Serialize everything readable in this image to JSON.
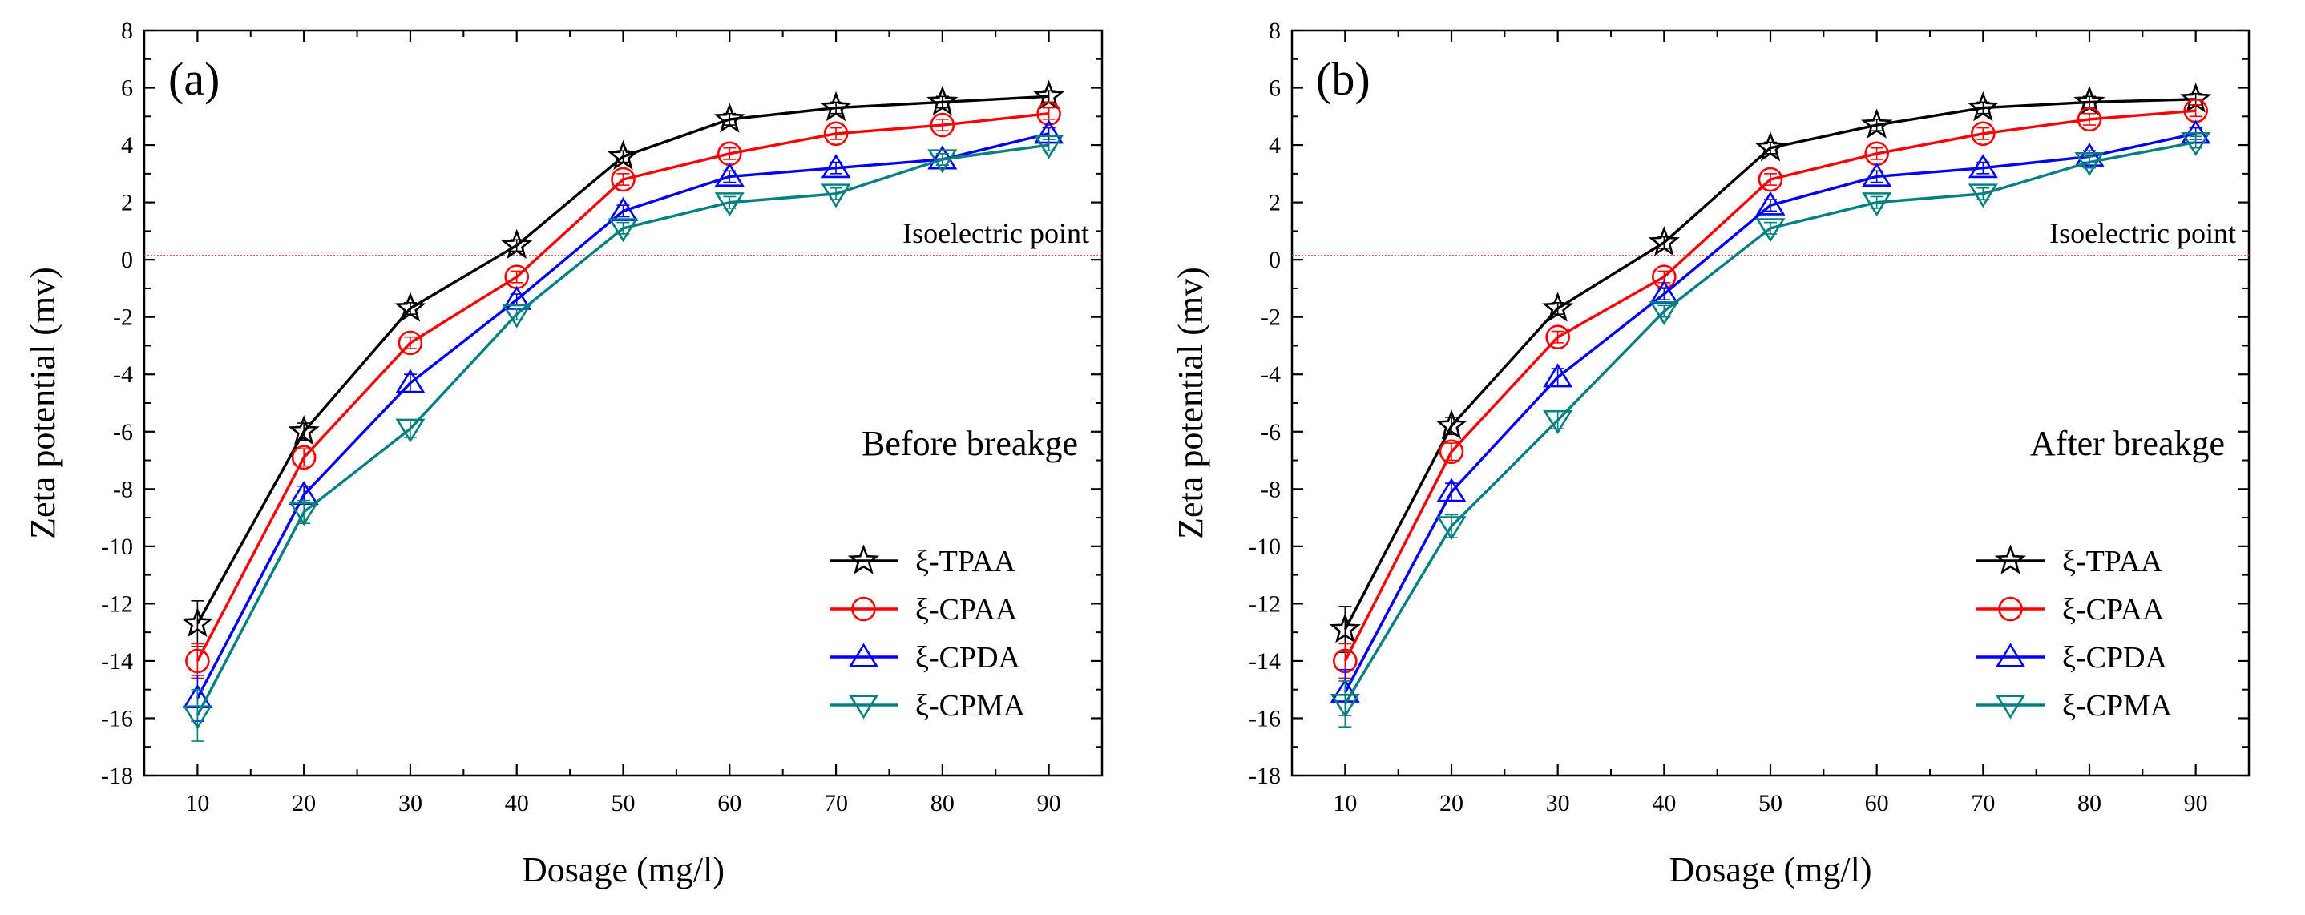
{
  "chart_data": [
    {
      "type": "line",
      "panel_label": "(a)",
      "annotation": "Before breakge",
      "reference_label": "Isoelectric point",
      "reference_y": 0.15,
      "xlabel": "Dosage (mg/l)",
      "ylabel": "Zeta potential (mv)",
      "x": [
        10,
        20,
        30,
        40,
        50,
        60,
        70,
        80,
        90
      ],
      "xlim": [
        5,
        95
      ],
      "ylim": [
        -18,
        8
      ],
      "xticks": [
        10,
        20,
        30,
        40,
        50,
        60,
        70,
        80,
        90
      ],
      "yticks": [
        -18,
        -16,
        -14,
        -12,
        -10,
        -8,
        -6,
        -4,
        -2,
        0,
        2,
        4,
        6,
        8
      ],
      "legend_position": "lower-right",
      "series": [
        {
          "name": "ξ-TPAA",
          "color": "#000000",
          "marker": "star",
          "values": [
            -12.7,
            -6.0,
            -1.7,
            0.5,
            3.6,
            4.9,
            5.3,
            5.5,
            5.7
          ],
          "errors": [
            0.8,
            0.3,
            0.2,
            0.2,
            0.2,
            0.2,
            0.2,
            0.2,
            0.2
          ]
        },
        {
          "name": "ξ-CPAA",
          "color": "#ff0000",
          "marker": "circle",
          "values": [
            -14.0,
            -6.9,
            -2.9,
            -0.6,
            2.8,
            3.7,
            4.4,
            4.7,
            5.1
          ],
          "errors": [
            0.6,
            0.3,
            0.2,
            0.2,
            0.2,
            0.2,
            0.2,
            0.2,
            0.2
          ]
        },
        {
          "name": "ξ-CPDA",
          "color": "#0000ff",
          "marker": "triangle-up",
          "values": [
            -15.3,
            -8.2,
            -4.3,
            -1.4,
            1.7,
            2.9,
            3.2,
            3.5,
            4.4
          ],
          "errors": [
            0.8,
            0.3,
            0.3,
            0.2,
            0.2,
            0.2,
            0.2,
            0.2,
            0.2
          ]
        },
        {
          "name": "ξ-CPMA",
          "color": "#008080",
          "marker": "triangle-down",
          "values": [
            -15.9,
            -8.8,
            -5.9,
            -1.9,
            1.1,
            2.0,
            2.3,
            3.5,
            4.0
          ],
          "errors": [
            0.9,
            0.4,
            0.3,
            0.2,
            0.2,
            0.2,
            0.2,
            0.2,
            0.2
          ]
        }
      ]
    },
    {
      "type": "line",
      "panel_label": "(b)",
      "annotation": "After breakge",
      "reference_label": "Isoelectric point",
      "reference_y": 0.15,
      "xlabel": "Dosage (mg/l)",
      "ylabel": "Zeta potential (mv)",
      "x": [
        10,
        20,
        30,
        40,
        50,
        60,
        70,
        80,
        90
      ],
      "xlim": [
        5,
        95
      ],
      "ylim": [
        -18,
        8
      ],
      "xticks": [
        10,
        20,
        30,
        40,
        50,
        60,
        70,
        80,
        90
      ],
      "yticks": [
        -18,
        -16,
        -14,
        -12,
        -10,
        -8,
        -6,
        -4,
        -2,
        0,
        2,
        4,
        6,
        8
      ],
      "legend_position": "lower-right",
      "series": [
        {
          "name": "ξ-TPAA",
          "color": "#000000",
          "marker": "star",
          "values": [
            -12.9,
            -5.8,
            -1.7,
            0.6,
            3.9,
            4.7,
            5.3,
            5.5,
            5.6
          ],
          "errors": [
            0.8,
            0.3,
            0.2,
            0.2,
            0.2,
            0.2,
            0.2,
            0.2,
            0.2
          ]
        },
        {
          "name": "ξ-CPAA",
          "color": "#ff0000",
          "marker": "circle",
          "values": [
            -14.0,
            -6.7,
            -2.7,
            -0.6,
            2.8,
            3.7,
            4.4,
            4.9,
            5.2
          ],
          "errors": [
            0.6,
            0.3,
            0.2,
            0.2,
            0.2,
            0.2,
            0.2,
            0.2,
            0.2
          ]
        },
        {
          "name": "ξ-CPDA",
          "color": "#0000ff",
          "marker": "triangle-up",
          "values": [
            -15.1,
            -8.1,
            -4.1,
            -1.2,
            1.9,
            2.9,
            3.2,
            3.6,
            4.4
          ],
          "errors": [
            0.8,
            0.3,
            0.3,
            0.2,
            0.2,
            0.2,
            0.2,
            0.2,
            0.2
          ]
        },
        {
          "name": "ξ-CPMA",
          "color": "#008080",
          "marker": "triangle-down",
          "values": [
            -15.5,
            -9.3,
            -5.6,
            -1.8,
            1.1,
            2.0,
            2.3,
            3.4,
            4.1
          ],
          "errors": [
            0.8,
            0.4,
            0.3,
            0.2,
            0.2,
            0.2,
            0.2,
            0.2,
            0.2
          ]
        }
      ]
    }
  ]
}
